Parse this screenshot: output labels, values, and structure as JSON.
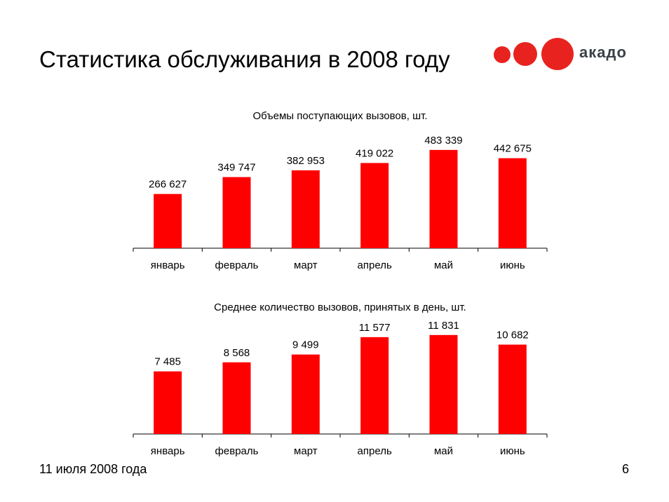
{
  "header": {
    "title": "Статистика обслуживания в 2008 году"
  },
  "logo": {
    "text": "акадо"
  },
  "footer": {
    "date": "11 июля 2008 года",
    "page": "6"
  },
  "colors": {
    "bar": "#ff0000",
    "logo": "#e8231f"
  },
  "chart_data": [
    {
      "type": "bar",
      "title": "Объемы поступающих вызовов, шт.",
      "categories": [
        "январь",
        "февраль",
        "март",
        "апрель",
        "май",
        "июнь"
      ],
      "values": [
        266627,
        349747,
        382953,
        419022,
        483339,
        442675
      ],
      "labels": [
        "266 627",
        "349 747",
        "382 953",
        "419 022",
        "483 339",
        "442 675"
      ],
      "ylim": [
        0,
        600000
      ],
      "grid": false
    },
    {
      "type": "bar",
      "title": "Среднее количество вызовов, принятых в день, шт.",
      "categories": [
        "январь",
        "февраль",
        "март",
        "апрель",
        "май",
        "июнь"
      ],
      "values": [
        7485,
        8568,
        9499,
        11577,
        11831,
        10682
      ],
      "labels": [
        "7 485",
        "8 568",
        "9 499",
        "11 577",
        "11 831",
        "10 682"
      ],
      "ylim": [
        0,
        15000
      ],
      "grid": false
    }
  ]
}
